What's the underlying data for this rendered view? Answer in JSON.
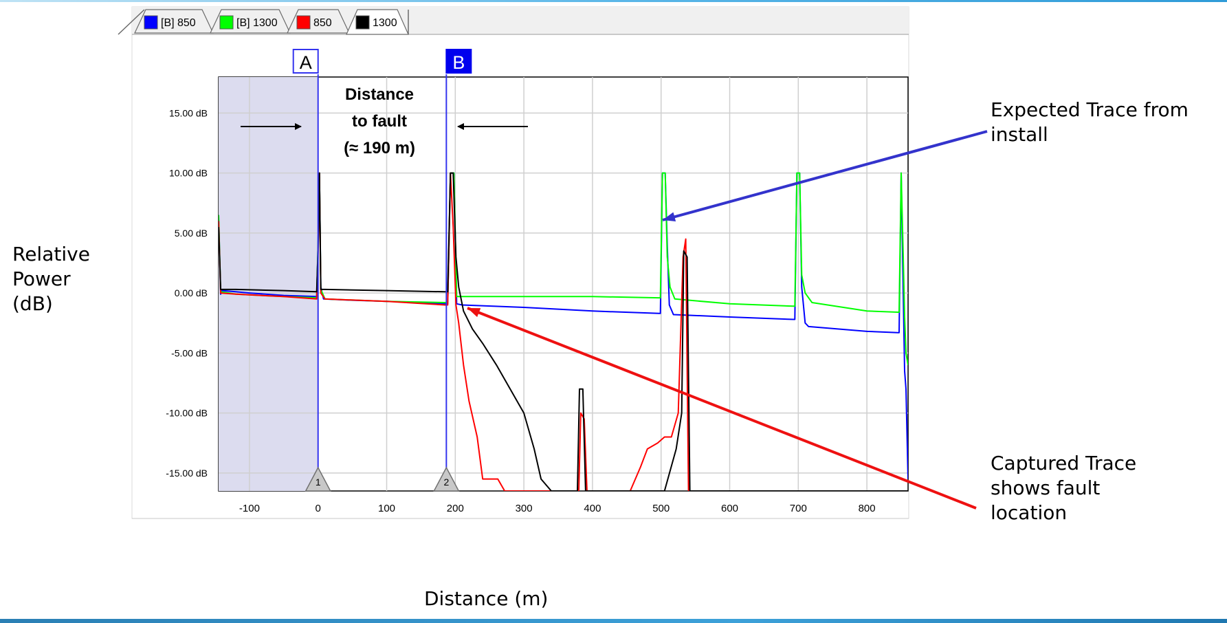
{
  "tabs": [
    {
      "label": "[B] 850",
      "color": "#0000ff"
    },
    {
      "label": "[B] 1300",
      "color": "#00ff00"
    },
    {
      "label": "850",
      "color": "#ff0000"
    },
    {
      "label": "1300",
      "color": "#000000"
    }
  ],
  "cursors": {
    "a_label": "A",
    "b_label": "B"
  },
  "annotation": {
    "line1": "Distance",
    "line2": "to fault",
    "line3": "(≈ 190 m)"
  },
  "labels": {
    "ylabel_lines": [
      "Relative",
      "Power",
      "(dB)"
    ],
    "xlabel": "Distance (m)",
    "callout_expected_lines": [
      "Expected Trace from",
      "install"
    ],
    "callout_captured_lines": [
      "Captured Trace",
      "shows fault",
      "location"
    ]
  },
  "colors": {
    "expected_arrow": "#3333cc",
    "captured_arrow": "#ee1111",
    "cursor": "#3333ee"
  },
  "chart_data": {
    "type": "line",
    "xlabel": "Distance (m)",
    "ylabel": "Relative Power (dB)",
    "xlim": [
      -145,
      860
    ],
    "ylim": [
      -16.5,
      18
    ],
    "xticks": [
      -100,
      0,
      100,
      200,
      300,
      400,
      500,
      600,
      700,
      800
    ],
    "yticks": [
      15,
      10,
      5,
      0,
      -5,
      -10,
      -15
    ],
    "ytick_labels": [
      "15.00 dB",
      "10.00 dB",
      "5.00 dB",
      "0.00 dB",
      "-5.00 dB",
      "-10.00 dB",
      "-15.00 dB"
    ],
    "grid": true,
    "cursor_a": 0,
    "cursor_b": 187,
    "event_markers": [
      {
        "label": "1",
        "x": 0
      },
      {
        "label": "2",
        "x": 187
      }
    ],
    "series": [
      {
        "name": "[B] 850",
        "color": "#0000ff",
        "points": [
          [
            -145,
            6.5
          ],
          [
            -142,
            -0.1
          ],
          [
            -140,
            0.2
          ],
          [
            -120,
            0.1
          ],
          [
            -100,
            0.0
          ],
          [
            -50,
            -0.2
          ],
          [
            -2,
            -0.3
          ],
          [
            0,
            4.0
          ],
          [
            2,
            10.0
          ],
          [
            4,
            0.5
          ],
          [
            8,
            -0.5
          ],
          [
            50,
            -0.6
          ],
          [
            100,
            -0.7
          ],
          [
            150,
            -0.8
          ],
          [
            185,
            -0.9
          ],
          [
            189,
            -0.9
          ],
          [
            193,
            10.0
          ],
          [
            198,
            10.0
          ],
          [
            202,
            -0.9
          ],
          [
            210,
            -1.0
          ],
          [
            300,
            -1.2
          ],
          [
            400,
            -1.5
          ],
          [
            497,
            -1.7
          ],
          [
            499,
            -1.7
          ],
          [
            502,
            10.0
          ],
          [
            506,
            10.0
          ],
          [
            509,
            4.0
          ],
          [
            512,
            -1.0
          ],
          [
            518,
            -1.8
          ],
          [
            600,
            -2.0
          ],
          [
            693,
            -2.2
          ],
          [
            695,
            -2.2
          ],
          [
            698,
            10.0
          ],
          [
            702,
            10.0
          ],
          [
            705,
            0.5
          ],
          [
            710,
            -2.5
          ],
          [
            715,
            -2.8
          ],
          [
            800,
            -3.2
          ],
          [
            845,
            -3.3
          ],
          [
            847,
            -3.3
          ],
          [
            850,
            10.0
          ],
          [
            853,
            0.0
          ],
          [
            855,
            -6.5
          ],
          [
            857,
            -8.0
          ],
          [
            859,
            -13.0
          ],
          [
            860,
            -15.5
          ]
        ]
      },
      {
        "name": "[B] 1300",
        "color": "#00ff00",
        "points": [
          [
            -145,
            6.5
          ],
          [
            -142,
            0.1
          ],
          [
            -120,
            -0.1
          ],
          [
            -50,
            -0.3
          ],
          [
            -2,
            -0.4
          ],
          [
            0,
            4.0
          ],
          [
            2,
            10.0
          ],
          [
            4,
            0.3
          ],
          [
            10,
            -0.5
          ],
          [
            100,
            -0.7
          ],
          [
            185,
            -0.8
          ],
          [
            189,
            -0.8
          ],
          [
            193,
            10.0
          ],
          [
            198,
            10.0
          ],
          [
            202,
            -0.3
          ],
          [
            210,
            -0.3
          ],
          [
            300,
            -0.3
          ],
          [
            400,
            -0.3
          ],
          [
            497,
            -0.4
          ],
          [
            499,
            -0.4
          ],
          [
            502,
            10.0
          ],
          [
            506,
            10.0
          ],
          [
            509,
            3.0
          ],
          [
            513,
            0.5
          ],
          [
            520,
            -0.5
          ],
          [
            600,
            -0.9
          ],
          [
            693,
            -1.1
          ],
          [
            695,
            -1.1
          ],
          [
            698,
            10.0
          ],
          [
            702,
            10.0
          ],
          [
            705,
            1.5
          ],
          [
            710,
            0.0
          ],
          [
            720,
            -0.8
          ],
          [
            800,
            -1.5
          ],
          [
            845,
            -1.6
          ],
          [
            847,
            -1.6
          ],
          [
            850,
            10.0
          ],
          [
            853,
            3.0
          ],
          [
            855,
            -2.0
          ],
          [
            857,
            -5.0
          ],
          [
            860,
            -6.0
          ]
        ]
      },
      {
        "name": "850",
        "color": "#ff0000",
        "points": [
          [
            -145,
            6.0
          ],
          [
            -142,
            0.0
          ],
          [
            -120,
            -0.1
          ],
          [
            -50,
            -0.3
          ],
          [
            -2,
            -0.5
          ],
          [
            0,
            3.0
          ],
          [
            2,
            10.0
          ],
          [
            4,
            0.0
          ],
          [
            10,
            -0.5
          ],
          [
            100,
            -0.7
          ],
          [
            185,
            -1.0
          ],
          [
            189,
            -1.0
          ],
          [
            193,
            10.0
          ],
          [
            197,
            5.5
          ],
          [
            201,
            -1.0
          ],
          [
            205,
            -2.5
          ],
          [
            212,
            -6.0
          ],
          [
            220,
            -9.0
          ],
          [
            232,
            -12.0
          ],
          [
            240,
            -15.5
          ],
          [
            262,
            -15.5
          ],
          [
            272,
            -16.5
          ],
          [
            380,
            -16.5
          ],
          [
            383,
            -10.0
          ],
          [
            388,
            -10.5
          ],
          [
            392,
            -16.5
          ],
          [
            455,
            -16.5
          ],
          [
            470,
            -14.5
          ],
          [
            480,
            -13.0
          ],
          [
            495,
            -12.5
          ],
          [
            505,
            -12.0
          ],
          [
            515,
            -12.0
          ],
          [
            525,
            -10.0
          ],
          [
            532,
            3.0
          ],
          [
            536,
            4.5
          ],
          [
            540,
            -16.5
          ],
          [
            860,
            -16.5
          ]
        ]
      },
      {
        "name": "1300",
        "color": "#000000",
        "points": [
          [
            -145,
            5.5
          ],
          [
            -142,
            0.3
          ],
          [
            -120,
            0.3
          ],
          [
            -50,
            0.2
          ],
          [
            -2,
            0.1
          ],
          [
            0,
            3.5
          ],
          [
            2,
            10.0
          ],
          [
            4,
            0.3
          ],
          [
            10,
            0.3
          ],
          [
            100,
            0.2
          ],
          [
            185,
            0.1
          ],
          [
            189,
            0.1
          ],
          [
            193,
            10.0
          ],
          [
            197,
            10.0
          ],
          [
            201,
            3.0
          ],
          [
            205,
            0.5
          ],
          [
            212,
            -1.5
          ],
          [
            225,
            -3.0
          ],
          [
            240,
            -4.2
          ],
          [
            260,
            -6.0
          ],
          [
            280,
            -8.0
          ],
          [
            300,
            -10.0
          ],
          [
            315,
            -13.0
          ],
          [
            325,
            -15.5
          ],
          [
            340,
            -16.5
          ],
          [
            378,
            -16.5
          ],
          [
            381,
            -8.0
          ],
          [
            386,
            -8.0
          ],
          [
            390,
            -16.5
          ],
          [
            480,
            -16.5
          ],
          [
            505,
            -16.5
          ],
          [
            522,
            -13.0
          ],
          [
            530,
            -10.0
          ],
          [
            533,
            3.5
          ],
          [
            538,
            3.0
          ],
          [
            542,
            -16.5
          ],
          [
            860,
            -16.5
          ]
        ]
      }
    ]
  }
}
